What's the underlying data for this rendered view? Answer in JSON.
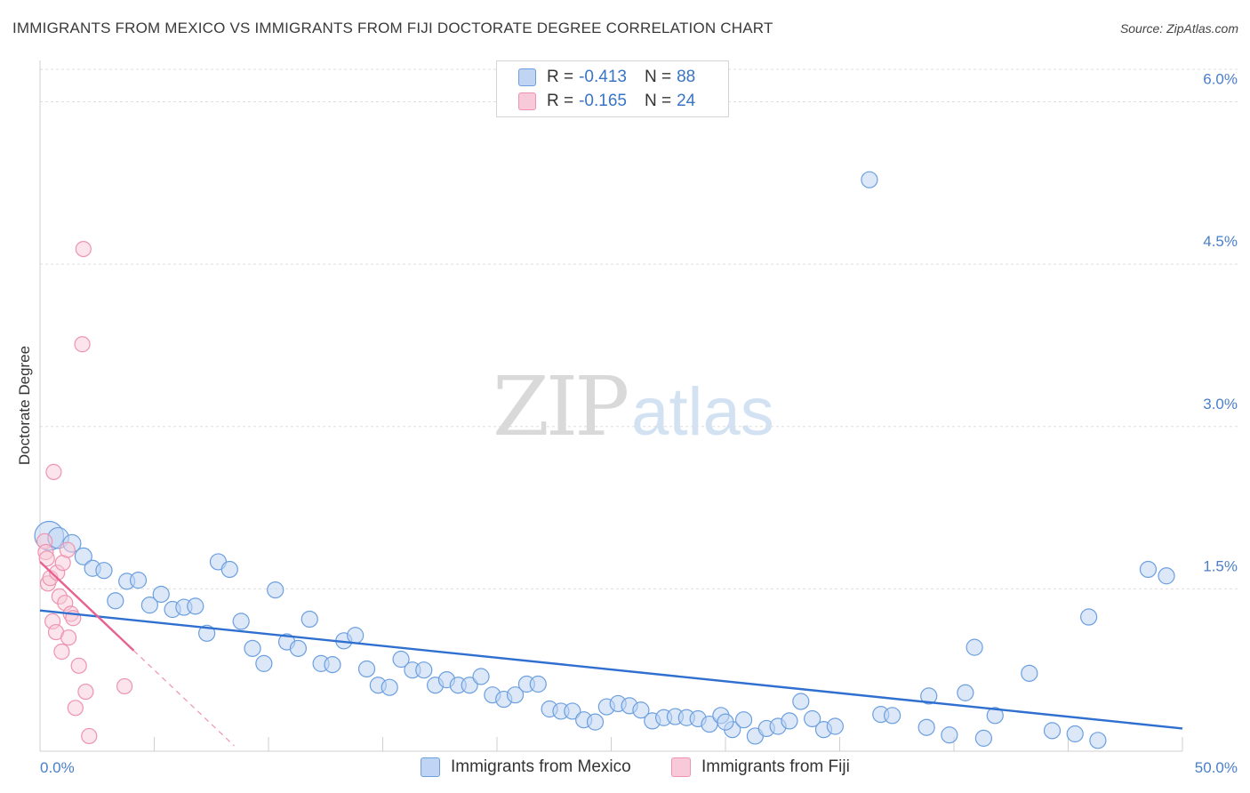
{
  "title": "IMMIGRANTS FROM MEXICO VS IMMIGRANTS FROM FIJI DOCTORATE DEGREE CORRELATION CHART",
  "source": "Source: ZipAtlas.com",
  "watermark": {
    "zip": "ZIP",
    "atlas": "atlas"
  },
  "colors": {
    "mexico": "#6b9fe0",
    "mexico_fill": "#bfd5f3",
    "mexico_line": "#2f6fd0",
    "fiji": "#ee93b0",
    "fiji_fill": "#f8c9d8",
    "fiji_line": "#e8628f",
    "axis_text": "#4a7fc8",
    "grid": "#dedede"
  },
  "legend": {
    "rows": [
      {
        "r_label": "R =",
        "r_value": "-0.413",
        "n_label": "N =",
        "n_value": "88"
      },
      {
        "r_label": "R =",
        "r_value": "-0.165",
        "n_label": "N =",
        "n_value": "24"
      }
    ]
  },
  "bottom_legend": {
    "mexico": "Immigrants from Mexico",
    "fiji": "Immigrants from Fiji"
  },
  "chart_data": {
    "type": "scatter",
    "title": "IMMIGRANTS FROM MEXICO VS IMMIGRANTS FROM FIJI DOCTORATE DEGREE CORRELATION CHART",
    "xlabel": "",
    "ylabel": "Doctorate Degree",
    "xlim": [
      0,
      50
    ],
    "ylim": [
      0,
      6.3
    ],
    "x_tick_labels": {
      "min": "0.0%",
      "max": "50.0%"
    },
    "y_ticks": [
      {
        "value": 1.5,
        "label": "1.5%"
      },
      {
        "value": 3.0,
        "label": "3.0%"
      },
      {
        "value": 4.5,
        "label": "4.5%"
      },
      {
        "value": 6.0,
        "label": "6.0%"
      }
    ],
    "grid": true,
    "legend_position": "top-center",
    "series": [
      {
        "name": "Immigrants from Mexico",
        "r": -0.413,
        "n": 88,
        "trend": {
          "x": [
            0,
            50
          ],
          "y": [
            1.3,
            0.21
          ]
        },
        "points": [
          {
            "x": 0.4,
            "y": 1.99,
            "s": 1.8
          },
          {
            "x": 0.8,
            "y": 1.97,
            "s": 1.3
          },
          {
            "x": 1.4,
            "y": 1.92,
            "s": 1.1
          },
          {
            "x": 1.9,
            "y": 1.8,
            "s": 1.05
          },
          {
            "x": 2.3,
            "y": 1.69
          },
          {
            "x": 2.8,
            "y": 1.67
          },
          {
            "x": 3.3,
            "y": 1.39
          },
          {
            "x": 3.8,
            "y": 1.57
          },
          {
            "x": 4.3,
            "y": 1.58
          },
          {
            "x": 4.8,
            "y": 1.35
          },
          {
            "x": 5.3,
            "y": 1.45
          },
          {
            "x": 5.8,
            "y": 1.31
          },
          {
            "x": 6.3,
            "y": 1.33
          },
          {
            "x": 6.8,
            "y": 1.34
          },
          {
            "x": 7.3,
            "y": 1.09
          },
          {
            "x": 7.8,
            "y": 1.75
          },
          {
            "x": 8.3,
            "y": 1.68
          },
          {
            "x": 8.8,
            "y": 1.2
          },
          {
            "x": 9.3,
            "y": 0.95
          },
          {
            "x": 9.8,
            "y": 0.81
          },
          {
            "x": 10.3,
            "y": 1.49
          },
          {
            "x": 10.8,
            "y": 1.01
          },
          {
            "x": 11.3,
            "y": 0.95
          },
          {
            "x": 11.8,
            "y": 1.22
          },
          {
            "x": 12.3,
            "y": 0.81
          },
          {
            "x": 12.8,
            "y": 0.8
          },
          {
            "x": 13.3,
            "y": 1.02
          },
          {
            "x": 13.8,
            "y": 1.07
          },
          {
            "x": 14.3,
            "y": 0.76
          },
          {
            "x": 14.8,
            "y": 0.61
          },
          {
            "x": 15.3,
            "y": 0.59
          },
          {
            "x": 15.8,
            "y": 0.85
          },
          {
            "x": 16.3,
            "y": 0.75
          },
          {
            "x": 16.8,
            "y": 0.75
          },
          {
            "x": 17.3,
            "y": 0.61
          },
          {
            "x": 17.8,
            "y": 0.66
          },
          {
            "x": 18.3,
            "y": 0.61
          },
          {
            "x": 18.8,
            "y": 0.61
          },
          {
            "x": 19.3,
            "y": 0.69
          },
          {
            "x": 19.8,
            "y": 0.52
          },
          {
            "x": 20.3,
            "y": 0.48
          },
          {
            "x": 20.8,
            "y": 0.52
          },
          {
            "x": 21.3,
            "y": 0.62
          },
          {
            "x": 21.8,
            "y": 0.62
          },
          {
            "x": 22.3,
            "y": 0.39
          },
          {
            "x": 22.8,
            "y": 0.37
          },
          {
            "x": 23.3,
            "y": 0.37
          },
          {
            "x": 23.8,
            "y": 0.29
          },
          {
            "x": 24.3,
            "y": 0.27
          },
          {
            "x": 24.8,
            "y": 0.41
          },
          {
            "x": 25.3,
            "y": 0.44
          },
          {
            "x": 25.8,
            "y": 0.42
          },
          {
            "x": 26.3,
            "y": 0.38
          },
          {
            "x": 26.8,
            "y": 0.28
          },
          {
            "x": 27.3,
            "y": 0.31
          },
          {
            "x": 27.8,
            "y": 0.32
          },
          {
            "x": 28.3,
            "y": 0.31
          },
          {
            "x": 28.8,
            "y": 0.3
          },
          {
            "x": 29.3,
            "y": 0.25
          },
          {
            "x": 29.8,
            "y": 0.33
          },
          {
            "x": 30.3,
            "y": 0.2
          },
          {
            "x": 30.8,
            "y": 0.29
          },
          {
            "x": 31.3,
            "y": 0.14
          },
          {
            "x": 31.8,
            "y": 0.21
          },
          {
            "x": 32.3,
            "y": 0.23
          },
          {
            "x": 32.8,
            "y": 0.28
          },
          {
            "x": 33.3,
            "y": 0.46
          },
          {
            "x": 33.8,
            "y": 0.3
          },
          {
            "x": 34.3,
            "y": 0.2
          },
          {
            "x": 34.8,
            "y": 0.23
          },
          {
            "x": 36.3,
            "y": 5.28
          },
          {
            "x": 36.8,
            "y": 0.34
          },
          {
            "x": 37.3,
            "y": 0.33
          },
          {
            "x": 38.8,
            "y": 0.22
          },
          {
            "x": 38.9,
            "y": 0.51
          },
          {
            "x": 39.8,
            "y": 0.15
          },
          {
            "x": 40.5,
            "y": 0.54
          },
          {
            "x": 40.9,
            "y": 0.96
          },
          {
            "x": 41.3,
            "y": 0.12
          },
          {
            "x": 41.8,
            "y": 0.33
          },
          {
            "x": 43.3,
            "y": 0.72
          },
          {
            "x": 44.3,
            "y": 0.19
          },
          {
            "x": 45.3,
            "y": 0.16
          },
          {
            "x": 45.9,
            "y": 1.24
          },
          {
            "x": 46.3,
            "y": 0.1
          },
          {
            "x": 48.5,
            "y": 1.68
          },
          {
            "x": 49.3,
            "y": 1.62
          },
          {
            "x": 30.0,
            "y": 0.27
          }
        ]
      },
      {
        "name": "Immigrants from Fiji",
        "r": -0.165,
        "n": 24,
        "trend": {
          "x": [
            0,
            4.1
          ],
          "y": [
            1.75,
            0.93
          ]
        },
        "trend_extension": {
          "x": [
            4.1,
            8.5
          ],
          "y": [
            0.93,
            0.05
          ]
        },
        "points": [
          {
            "x": 0.2,
            "y": 1.94
          },
          {
            "x": 0.25,
            "y": 1.84
          },
          {
            "x": 0.3,
            "y": 1.78
          },
          {
            "x": 0.35,
            "y": 1.55
          },
          {
            "x": 0.45,
            "y": 1.6
          },
          {
            "x": 0.55,
            "y": 1.2
          },
          {
            "x": 0.6,
            "y": 2.58
          },
          {
            "x": 0.7,
            "y": 1.1
          },
          {
            "x": 0.75,
            "y": 1.65
          },
          {
            "x": 0.85,
            "y": 1.43
          },
          {
            "x": 0.95,
            "y": 0.92
          },
          {
            "x": 1.0,
            "y": 1.74
          },
          {
            "x": 1.1,
            "y": 1.37
          },
          {
            "x": 1.2,
            "y": 1.86
          },
          {
            "x": 1.25,
            "y": 1.05
          },
          {
            "x": 1.35,
            "y": 1.27
          },
          {
            "x": 1.45,
            "y": 1.23
          },
          {
            "x": 1.55,
            "y": 0.4
          },
          {
            "x": 1.7,
            "y": 0.79
          },
          {
            "x": 1.85,
            "y": 3.76
          },
          {
            "x": 1.9,
            "y": 4.64
          },
          {
            "x": 2.0,
            "y": 0.55
          },
          {
            "x": 2.15,
            "y": 0.14
          },
          {
            "x": 3.7,
            "y": 0.6
          }
        ]
      }
    ]
  }
}
